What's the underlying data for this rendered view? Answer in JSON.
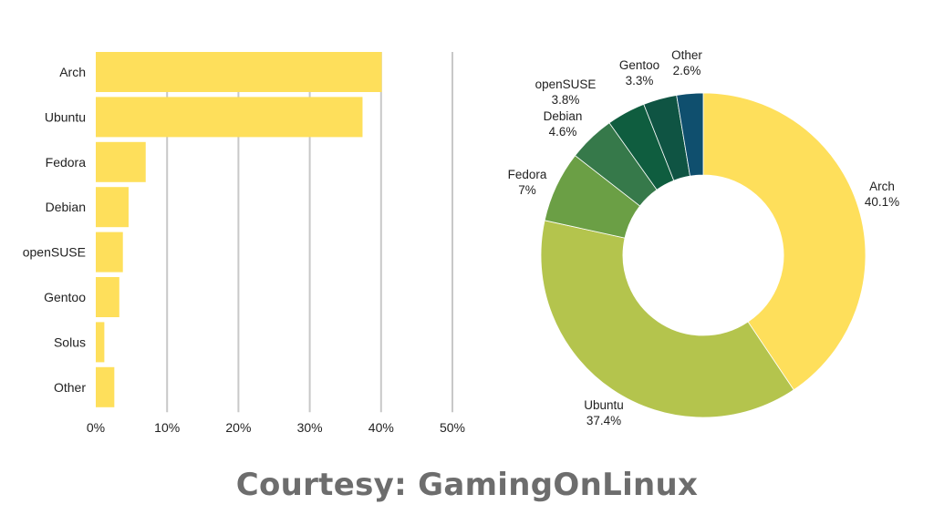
{
  "chart_data": [
    {
      "type": "bar",
      "orientation": "horizontal",
      "categories": [
        "Arch",
        "Ubuntu",
        "Fedora",
        "Debian",
        "openSUSE",
        "Gentoo",
        "Solus",
        "Other"
      ],
      "values": [
        40.1,
        37.4,
        7,
        4.6,
        3.8,
        3.3,
        1.2,
        2.6
      ],
      "xlim": [
        0,
        50
      ],
      "x_ticks": [
        "0%",
        "10%",
        "20%",
        "30%",
        "40%",
        "50%"
      ],
      "x_tick_values": [
        0,
        10,
        20,
        30,
        40,
        50
      ],
      "grid": "vertical",
      "bar_color": "#FEDF5B"
    },
    {
      "type": "pie",
      "style": "donut",
      "slices": [
        {
          "label": "Arch",
          "value_label": "40.1%",
          "value": 40.1,
          "color": "#FEDF5B"
        },
        {
          "label": "Ubuntu",
          "value_label": "37.4%",
          "value": 37.4,
          "color": "#B4C44D"
        },
        {
          "label": "Fedora",
          "value_label": "7%",
          "value": 7,
          "color": "#6B9F45"
        },
        {
          "label": "Debian",
          "value_label": "4.6%",
          "value": 4.6,
          "color": "#36794A"
        },
        {
          "label": "openSUSE",
          "value_label": "3.8%",
          "value": 3.8,
          "color": "#0F5D3F"
        },
        {
          "label": "Gentoo",
          "value_label": "3.3%",
          "value": 3.3,
          "color": "#0F5443"
        },
        {
          "label": "Other",
          "value_label": "2.6%",
          "value": 2.6,
          "color": "#0F4F6E"
        }
      ]
    }
  ],
  "credit": "Courtesy: GamingOnLinux"
}
